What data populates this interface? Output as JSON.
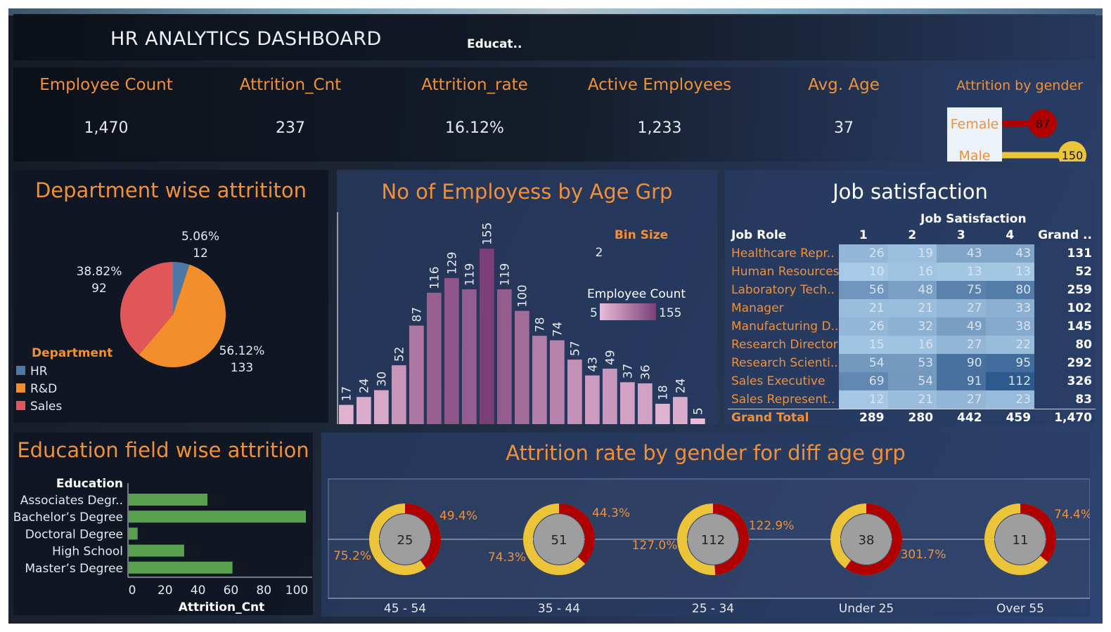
{
  "header": {
    "title": "HR ANALYTICS DASHBOARD",
    "filter_label": "Educat.."
  },
  "kpis": [
    {
      "label": "Employee Count",
      "value": "1,470"
    },
    {
      "label": "Attrition_Cnt",
      "value": "237"
    },
    {
      "label": "Attrition_rate",
      "value": "16.12%"
    },
    {
      "label": "Active Employees",
      "value": "1,233"
    },
    {
      "label": "Avg. Age",
      "value": "37"
    }
  ],
  "colors": {
    "accent": "#f0913a",
    "hr": "#4e79a7",
    "rnd": "#f28e2b",
    "sales": "#e15759",
    "female": "#b10000",
    "male": "#ecc43a",
    "bar_green": "#59a14f",
    "hist_low": "#e9bcd8",
    "hist_high": "#7b3f78"
  },
  "chart_data": [
    {
      "id": "gender",
      "type": "bar",
      "title": "Attrition by gender",
      "categories": [
        "Female",
        "Male"
      ],
      "values": [
        87,
        150
      ]
    },
    {
      "id": "department",
      "type": "pie",
      "title": "Department wise attrititon",
      "legend_title": "Department",
      "legend_placement": "bottom-left",
      "slices": [
        {
          "name": "HR",
          "value": 12,
          "pct": "5.06%"
        },
        {
          "name": "R&D",
          "value": 133,
          "pct": "56.12%"
        },
        {
          "name": "Sales",
          "value": 92,
          "pct": "38.82%"
        }
      ]
    },
    {
      "id": "age_hist",
      "type": "bar",
      "title": "No of Employess by Age Grp",
      "bin_label": "Bin Size",
      "bin_value": "2",
      "legend_title": "Employee Count",
      "legend_min": "5",
      "legend_max": "155",
      "values": [
        17,
        24,
        30,
        52,
        87,
        116,
        129,
        119,
        155,
        119,
        100,
        78,
        74,
        57,
        43,
        49,
        37,
        36,
        18,
        24,
        5
      ]
    },
    {
      "id": "job_satisfaction",
      "type": "table",
      "title": "Job satisfaction",
      "col_group": "Job Satisfaction",
      "row_header": "Job Role",
      "columns": [
        "1",
        "2",
        "3",
        "4",
        "Grand .."
      ],
      "rows": [
        {
          "role": "Healthcare Repr..",
          "values": [
            26,
            19,
            43,
            43
          ],
          "total": "131"
        },
        {
          "role": "Human Resources",
          "values": [
            10,
            16,
            13,
            13
          ],
          "total": "52"
        },
        {
          "role": "Laboratory Tech..",
          "values": [
            56,
            48,
            75,
            80
          ],
          "total": "259"
        },
        {
          "role": "Manager",
          "values": [
            21,
            21,
            27,
            33
          ],
          "total": "102"
        },
        {
          "role": "Manufacturing D..",
          "values": [
            26,
            32,
            49,
            38
          ],
          "total": "145"
        },
        {
          "role": "Research Director",
          "values": [
            15,
            16,
            27,
            22
          ],
          "total": "80"
        },
        {
          "role": "Research Scienti..",
          "values": [
            54,
            53,
            90,
            95
          ],
          "total": "292"
        },
        {
          "role": "Sales Executive",
          "values": [
            69,
            54,
            91,
            112
          ],
          "total": "326"
        },
        {
          "role": "Sales Represent..",
          "values": [
            12,
            21,
            27,
            23
          ],
          "total": "83"
        }
      ],
      "grand_total": {
        "label": "Grand Total",
        "values": [
          "289",
          "280",
          "442",
          "459"
        ],
        "total": "1,470"
      }
    },
    {
      "id": "education",
      "type": "bar",
      "title": "Education field wise attrition",
      "ylabel": "Education",
      "xlabel": "Attrition_Cnt",
      "categories": [
        "Associates Degr..",
        "Bachelor’s Degree",
        "Doctoral Degree",
        "High School",
        "Master’s Degree"
      ],
      "values": [
        44,
        99,
        5,
        31,
        58
      ],
      "xlim": [
        0,
        110
      ],
      "xticks": [
        0,
        20,
        40,
        60,
        80,
        100
      ]
    },
    {
      "id": "gender_age",
      "type": "pie",
      "title": "Attrition rate by gender for diff age grp",
      "groups": [
        {
          "label": "45 - 54",
          "center": "25",
          "female_pct": "49.4%",
          "male_pct": "75.2%",
          "female_share": 0.4
        },
        {
          "label": "35 - 44",
          "center": "51",
          "female_pct": "44.3%",
          "male_pct": "74.3%",
          "female_share": 0.37
        },
        {
          "label": "25 - 34",
          "center": "112",
          "female_pct": "122.9%",
          "male_pct": "127.0%",
          "female_share": 0.49
        },
        {
          "label": "Under 25",
          "center": "38",
          "female_pct": "301.7%",
          "male_pct": "",
          "female_share": 0.6
        },
        {
          "label": "Over 55",
          "center": "11",
          "female_pct": "74.4%",
          "male_pct": "",
          "female_share": 0.36
        }
      ]
    }
  ]
}
